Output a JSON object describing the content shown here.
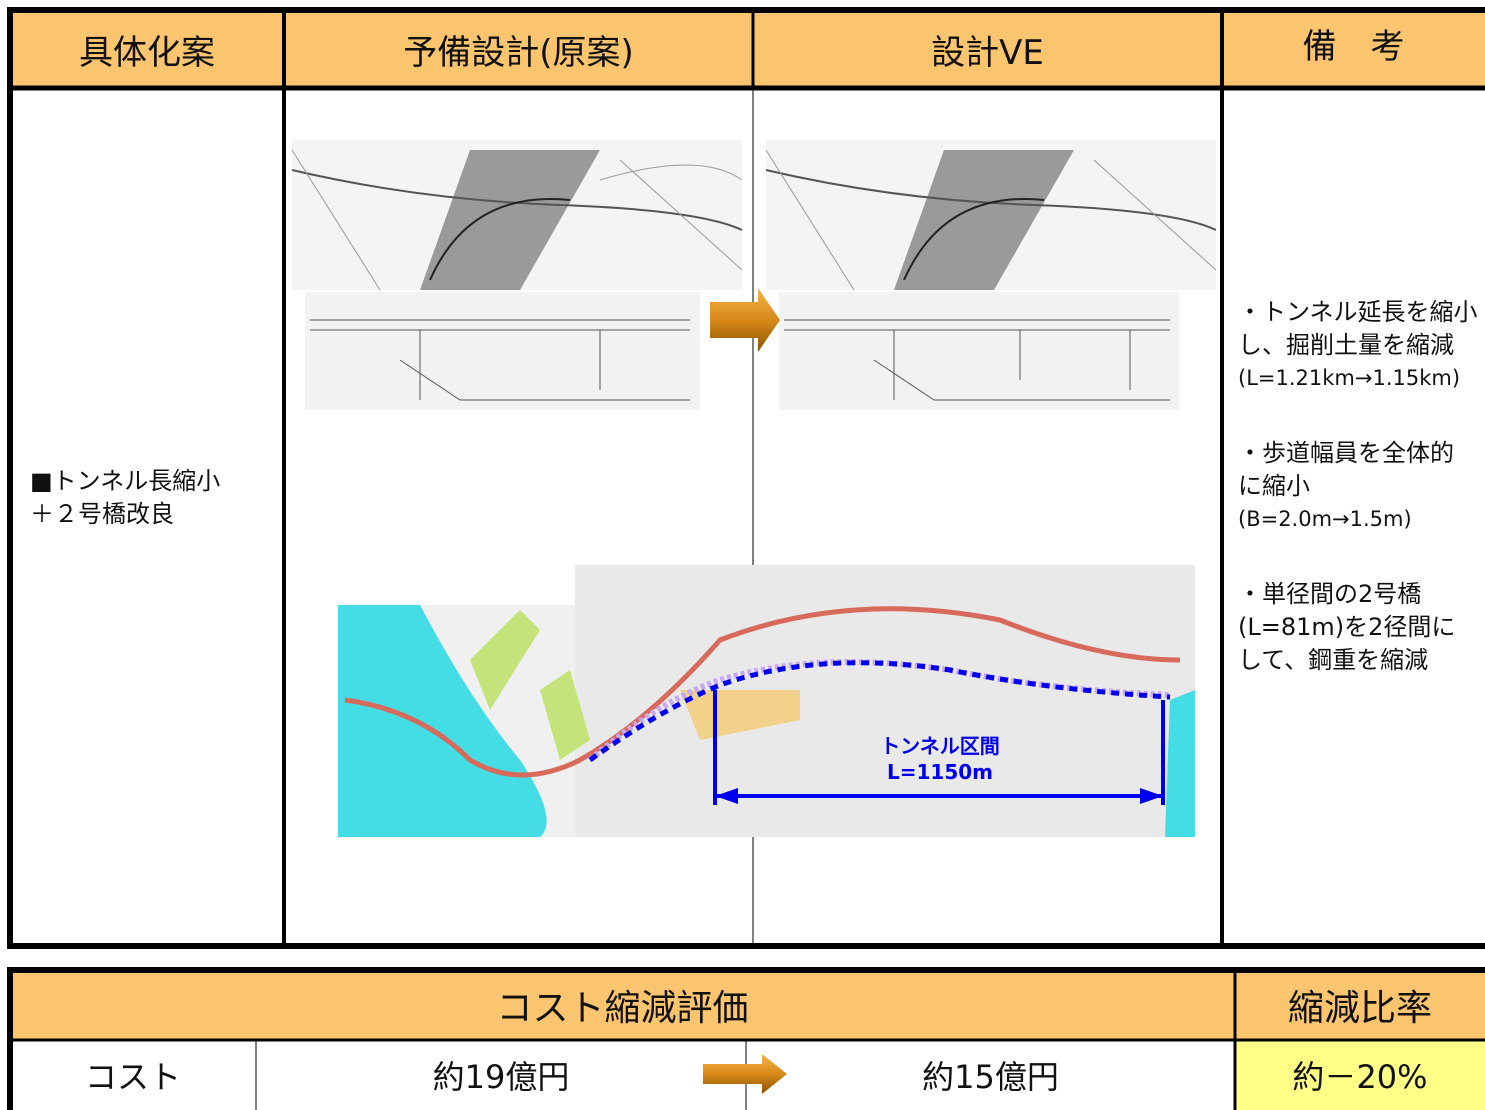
{
  "table": {
    "headers": [
      "具体化案",
      "予備設計(原案)",
      "設計VE",
      "備　考"
    ],
    "proposal": [
      "■トンネル長縮小",
      "＋２号橋改良"
    ],
    "remarks": [
      {
        "lines": [
          "・トンネル延長を縮小",
          "し、掘削土量を縮減"
        ],
        "note": "(L=1.21km→1.15km)"
      },
      {
        "lines": [
          "・歩道幅員を全体的",
          "に縮小"
        ],
        "note": "(B=2.0m→1.5m)"
      },
      {
        "lines": [
          "・単径間の2号橋",
          "(L=81m)を2径間に",
          "して、鋼重を縮減"
        ]
      }
    ]
  },
  "map": {
    "label": "トンネル区間",
    "length": "L=1150m"
  },
  "cost_table": {
    "header": "コスト縮減評価",
    "ratio_header": "縮減比率",
    "row": {
      "label": "コスト",
      "before": "約19億円",
      "after": "約15億円",
      "ratio": "約－20%"
    }
  }
}
